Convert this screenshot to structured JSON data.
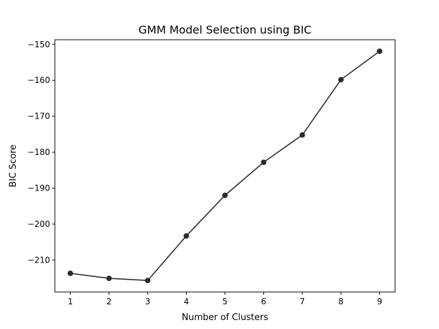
{
  "chart_data": {
    "type": "line",
    "title": "GMM Model Selection using BIC",
    "xlabel": "Number of Clusters",
    "ylabel": "BIC Score",
    "x": [
      1,
      2,
      3,
      4,
      5,
      6,
      7,
      8,
      9
    ],
    "series": [
      {
        "values": [
          -213.7,
          -215.1,
          -215.7,
          -203.3,
          -192.0,
          -182.8,
          -175.2,
          -159.8,
          -151.9
        ]
      }
    ],
    "x_ticks": [
      1,
      2,
      3,
      4,
      5,
      6,
      7,
      8,
      9
    ],
    "y_ticks": [
      -210,
      -200,
      -190,
      -180,
      -170,
      -160,
      -150
    ],
    "xlim": [
      0.6,
      9.4
    ],
    "ylim": [
      -218.9,
      -148.7
    ],
    "grid": false,
    "legend": "none",
    "colors": {
      "line": "#2b2b2b",
      "marker": "#2b2b2b",
      "axes": "#000000"
    }
  }
}
